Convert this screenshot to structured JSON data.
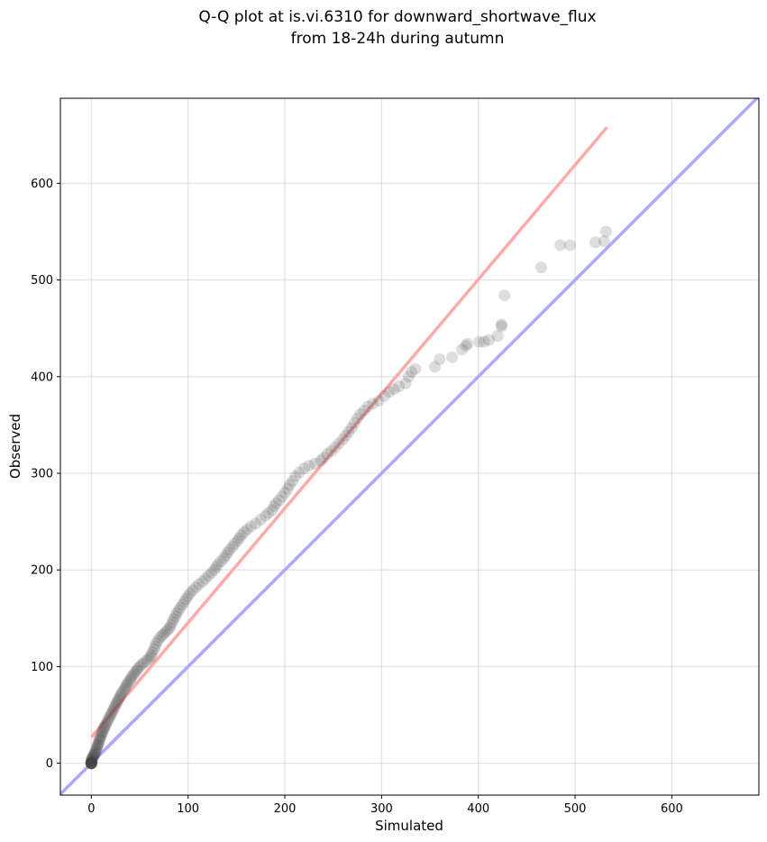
{
  "chart_data": {
    "type": "scatter",
    "title_line1": "Q-Q plot at is.vi.6310 for downward_shortwave_flux",
    "title_line2": "from 18-24h during autumn",
    "xlabel": "Simulated",
    "ylabel": "Observed",
    "xlim": [
      -32,
      690
    ],
    "ylim": [
      -33,
      688
    ],
    "xticks": [
      0,
      100,
      200,
      300,
      400,
      500,
      600
    ],
    "yticks": [
      0,
      100,
      200,
      300,
      400,
      500,
      600
    ],
    "grid": true,
    "identity_line": {
      "color": "#aaaaff"
    },
    "fit_line": {
      "color": "#ffaaaa",
      "start": [
        0,
        27
      ],
      "end": [
        533,
        658
      ]
    },
    "point_color": "#404040",
    "points": [
      [
        0,
        0
      ],
      [
        0,
        0
      ],
      [
        0,
        0
      ],
      [
        0,
        0
      ],
      [
        0,
        0
      ],
      [
        0,
        0
      ],
      [
        0,
        0
      ],
      [
        0,
        0
      ],
      [
        0,
        0
      ],
      [
        0,
        0
      ],
      [
        0,
        0
      ],
      [
        0,
        0
      ],
      [
        0,
        1
      ],
      [
        0,
        2
      ],
      [
        0,
        3
      ],
      [
        0,
        4
      ],
      [
        1,
        3
      ],
      [
        1,
        5
      ],
      [
        1,
        6
      ],
      [
        2,
        6
      ],
      [
        2,
        8
      ],
      [
        3,
        8
      ],
      [
        3,
        10
      ],
      [
        4,
        10
      ],
      [
        4,
        12
      ],
      [
        5,
        13
      ],
      [
        5,
        15
      ],
      [
        6,
        16
      ],
      [
        6,
        18
      ],
      [
        7,
        19
      ],
      [
        7,
        20
      ],
      [
        8,
        22
      ],
      [
        8,
        24
      ],
      [
        9,
        25
      ],
      [
        9,
        27
      ],
      [
        10,
        28
      ],
      [
        11,
        30
      ],
      [
        11,
        32
      ],
      [
        12,
        33
      ],
      [
        13,
        35
      ],
      [
        13,
        37
      ],
      [
        14,
        38
      ],
      [
        15,
        40
      ],
      [
        16,
        42
      ],
      [
        17,
        44
      ],
      [
        18,
        46
      ],
      [
        19,
        48
      ],
      [
        20,
        50
      ],
      [
        21,
        52
      ],
      [
        22,
        54
      ],
      [
        23,
        56
      ],
      [
        24,
        58
      ],
      [
        25,
        60
      ],
      [
        26,
        62
      ],
      [
        27,
        64
      ],
      [
        28,
        66
      ],
      [
        29,
        68
      ],
      [
        30,
        70
      ],
      [
        31,
        72
      ],
      [
        32,
        74
      ],
      [
        34,
        76
      ],
      [
        35,
        78
      ],
      [
        36,
        80
      ],
      [
        37,
        82
      ],
      [
        38,
        84
      ],
      [
        40,
        86
      ],
      [
        41,
        88
      ],
      [
        42,
        90
      ],
      [
        44,
        92
      ],
      [
        45,
        94
      ],
      [
        47,
        96
      ],
      [
        48,
        98
      ],
      [
        50,
        100
      ],
      [
        52,
        102
      ],
      [
        54,
        104
      ],
      [
        57,
        106
      ],
      [
        59,
        108
      ],
      [
        61,
        110
      ],
      [
        62,
        112
      ],
      [
        63,
        115
      ],
      [
        65,
        118
      ],
      [
        66,
        121
      ],
      [
        67,
        124
      ],
      [
        69,
        127
      ],
      [
        71,
        130
      ],
      [
        73,
        132
      ],
      [
        75,
        134
      ],
      [
        77,
        136
      ],
      [
        79,
        138
      ],
      [
        81,
        140
      ],
      [
        82,
        143
      ],
      [
        84,
        146
      ],
      [
        85,
        149
      ],
      [
        87,
        152
      ],
      [
        88,
        155
      ],
      [
        90,
        158
      ],
      [
        92,
        161
      ],
      [
        94,
        164
      ],
      [
        96,
        167
      ],
      [
        98,
        170
      ],
      [
        100,
        173
      ],
      [
        102,
        176
      ],
      [
        105,
        179
      ],
      [
        108,
        182
      ],
      [
        111,
        185
      ],
      [
        115,
        188
      ],
      [
        118,
        191
      ],
      [
        121,
        194
      ],
      [
        124,
        197
      ],
      [
        127,
        200
      ],
      [
        129,
        203
      ],
      [
        131,
        206
      ],
      [
        134,
        209
      ],
      [
        137,
        212
      ],
      [
        139,
        215
      ],
      [
        141,
        218
      ],
      [
        143,
        221
      ],
      [
        146,
        224
      ],
      [
        148,
        227
      ],
      [
        151,
        230
      ],
      [
        153,
        233
      ],
      [
        155,
        236
      ],
      [
        158,
        239
      ],
      [
        161,
        242
      ],
      [
        165,
        245
      ],
      [
        170,
        248
      ],
      [
        175,
        252
      ],
      [
        180,
        256
      ],
      [
        183,
        259
      ],
      [
        187,
        262
      ],
      [
        189,
        266
      ],
      [
        191,
        269
      ],
      [
        194,
        272
      ],
      [
        197,
        276
      ],
      [
        200,
        280
      ],
      [
        203,
        284
      ],
      [
        205,
        288
      ],
      [
        208,
        292
      ],
      [
        211,
        297
      ],
      [
        215,
        301
      ],
      [
        220,
        305
      ],
      [
        225,
        308
      ],
      [
        231,
        310
      ],
      [
        237,
        313
      ],
      [
        240,
        316
      ],
      [
        244,
        320
      ],
      [
        248,
        323
      ],
      [
        252,
        327
      ],
      [
        256,
        331
      ],
      [
        260,
        335
      ],
      [
        263,
        339
      ],
      [
        266,
        343
      ],
      [
        269,
        347
      ],
      [
        272,
        352
      ],
      [
        275,
        357
      ],
      [
        278,
        361
      ],
      [
        282,
        365
      ],
      [
        286,
        369
      ],
      [
        291,
        372
      ],
      [
        297,
        375
      ],
      [
        303,
        380
      ],
      [
        308,
        384
      ],
      [
        313,
        387
      ],
      [
        318,
        390
      ],
      [
        325,
        393
      ],
      [
        328,
        400
      ],
      [
        331,
        405
      ],
      [
        335,
        408
      ],
      [
        355,
        410
      ],
      [
        360,
        418
      ],
      [
        373,
        420
      ],
      [
        383,
        428
      ],
      [
        387,
        432
      ],
      [
        389,
        434
      ],
      [
        401,
        436
      ],
      [
        406,
        436
      ],
      [
        411,
        438
      ],
      [
        420,
        442
      ],
      [
        424,
        452
      ],
      [
        424,
        454
      ],
      [
        427,
        484
      ],
      [
        465,
        513
      ],
      [
        485,
        536
      ],
      [
        495,
        536
      ],
      [
        521,
        539
      ],
      [
        530,
        540
      ],
      [
        532,
        550
      ]
    ]
  }
}
